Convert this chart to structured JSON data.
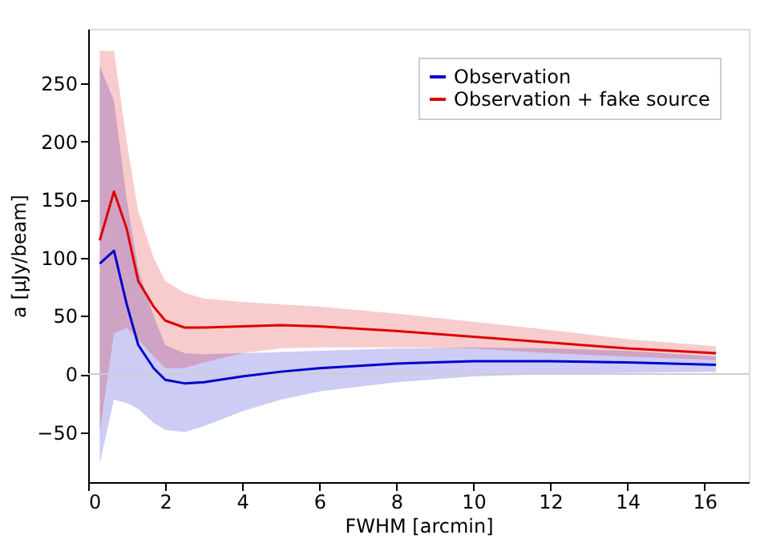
{
  "chart_data": {
    "type": "line",
    "xlabel": "FWHM [arcmin]",
    "ylabel": "a [μJy/beam]",
    "xlim": [
      0,
      17.15
    ],
    "ylim": [
      -93,
      297
    ],
    "xticks": [
      0,
      2,
      4,
      6,
      8,
      10,
      12,
      14,
      16
    ],
    "yticks": [
      -50,
      0,
      50,
      100,
      150,
      200,
      250
    ],
    "grid": false,
    "legend": "top right",
    "marker": "none",
    "line_style": "solid",
    "ref_lines": [
      {
        "axis": "y",
        "value": 0,
        "label": null,
        "color": "#cccccc"
      }
    ],
    "series": [
      {
        "name": "Observation",
        "color": "#0000cc",
        "x": [
          0.3,
          0.67,
          1.0,
          1.3,
          1.7,
          2.0,
          2.5,
          3,
          4,
          5,
          6,
          8,
          10,
          12,
          14,
          16.3
        ],
        "values": [
          95,
          106,
          60,
          25,
          5,
          -5,
          -8,
          -7,
          -2,
          2,
          5,
          9,
          11,
          11,
          10,
          8
        ],
        "lower": [
          -77,
          -22,
          -25,
          -30,
          -42,
          -48,
          -50,
          -45,
          -32,
          -22,
          -15,
          -7,
          -2,
          0,
          1,
          2
        ],
        "upper": [
          265,
          235,
          150,
          90,
          50,
          25,
          18,
          17,
          18,
          19,
          20,
          22,
          23,
          22,
          20,
          15
        ]
      },
      {
        "name": "Observation + fake source",
        "color": "#dd0000",
        "x": [
          0.3,
          0.67,
          1.0,
          1.3,
          1.7,
          2.0,
          2.5,
          3,
          4,
          5,
          6,
          8,
          10,
          12,
          14,
          16.3
        ],
        "values": [
          115,
          157,
          125,
          80,
          58,
          46,
          40,
          40,
          41,
          42,
          41,
          37,
          32,
          27,
          22,
          18
        ],
        "lower": [
          -50,
          35,
          40,
          30,
          15,
          5,
          5,
          10,
          18,
          22,
          23,
          23,
          22,
          18,
          15,
          12
        ],
        "upper": [
          278,
          278,
          200,
          140,
          100,
          80,
          70,
          65,
          62,
          60,
          58,
          52,
          45,
          38,
          30,
          24
        ]
      }
    ]
  }
}
